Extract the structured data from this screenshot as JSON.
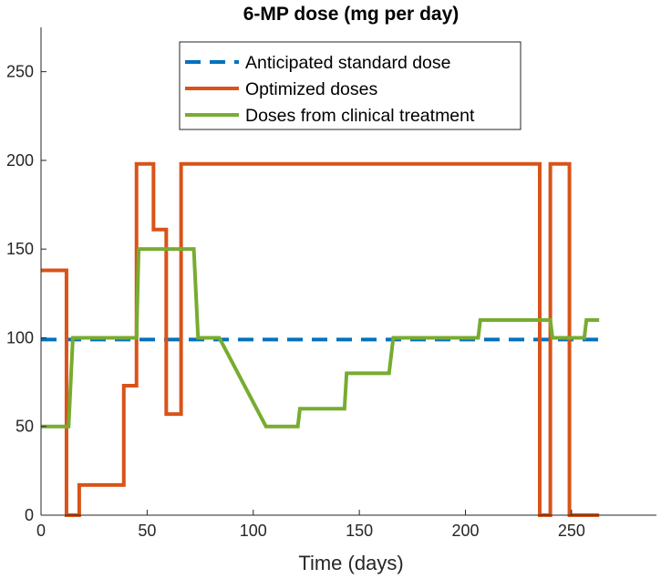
{
  "chart_data": {
    "type": "line",
    "title": "6-MP dose (mg per day)",
    "xlabel": "Time (days)",
    "ylabel": "",
    "xlim": [
      0,
      290
    ],
    "ylim": [
      0,
      275
    ],
    "xticks": [
      0,
      50,
      100,
      150,
      200,
      250
    ],
    "yticks": [
      0,
      50,
      100,
      150,
      200,
      250
    ],
    "xtick_labels": [
      "0",
      "50",
      "100",
      "150",
      "200",
      "250"
    ],
    "ytick_labels": [
      "0",
      "50",
      "100",
      "150",
      "200",
      "250"
    ],
    "grid": false,
    "legend_position": "top-center",
    "series": [
      {
        "name": "Anticipated standard dose",
        "color": "#0072BD",
        "style": "dashed",
        "x": [
          0,
          263
        ],
        "y": [
          99,
          99
        ]
      },
      {
        "name": "Optimized doses",
        "color": "#D95319",
        "style": "solid",
        "x": [
          0,
          12,
          12,
          18,
          18,
          39,
          39,
          45,
          45,
          53,
          53,
          59,
          59,
          66,
          66,
          235,
          235,
          240,
          240,
          249,
          249,
          263
        ],
        "y": [
          138,
          138,
          0,
          0,
          17,
          17,
          73,
          73,
          198,
          198,
          161,
          161,
          57,
          57,
          198,
          198,
          0,
          0,
          198,
          198,
          0,
          0
        ]
      },
      {
        "name": "Doses from clinical treatment",
        "color": "#77AC30",
        "style": "solid",
        "x": [
          0,
          13,
          15,
          45,
          46,
          72,
          74,
          84,
          106,
          121,
          122,
          143,
          144,
          164,
          166,
          206,
          207,
          240,
          241,
          256,
          257,
          263
        ],
        "y": [
          50,
          50,
          100,
          100,
          150,
          150,
          100,
          100,
          50,
          50,
          60,
          60,
          80,
          80,
          100,
          100,
          110,
          110,
          100,
          100,
          110,
          110
        ]
      }
    ]
  }
}
